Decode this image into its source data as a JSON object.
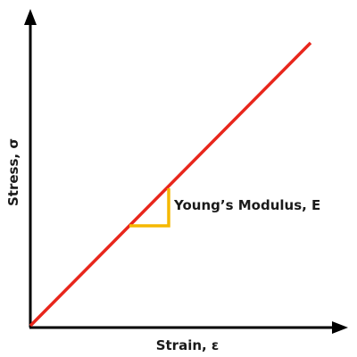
{
  "diagram": {
    "x_axis_label": "Strain, ε",
    "y_axis_label": "Stress, σ",
    "annotation_label": "Young’s Modulus, E",
    "colors": {
      "axes": "#000000",
      "line": "#e8261c",
      "slope_triangle": "#f5b800",
      "text": "#1a1a1a"
    }
  }
}
